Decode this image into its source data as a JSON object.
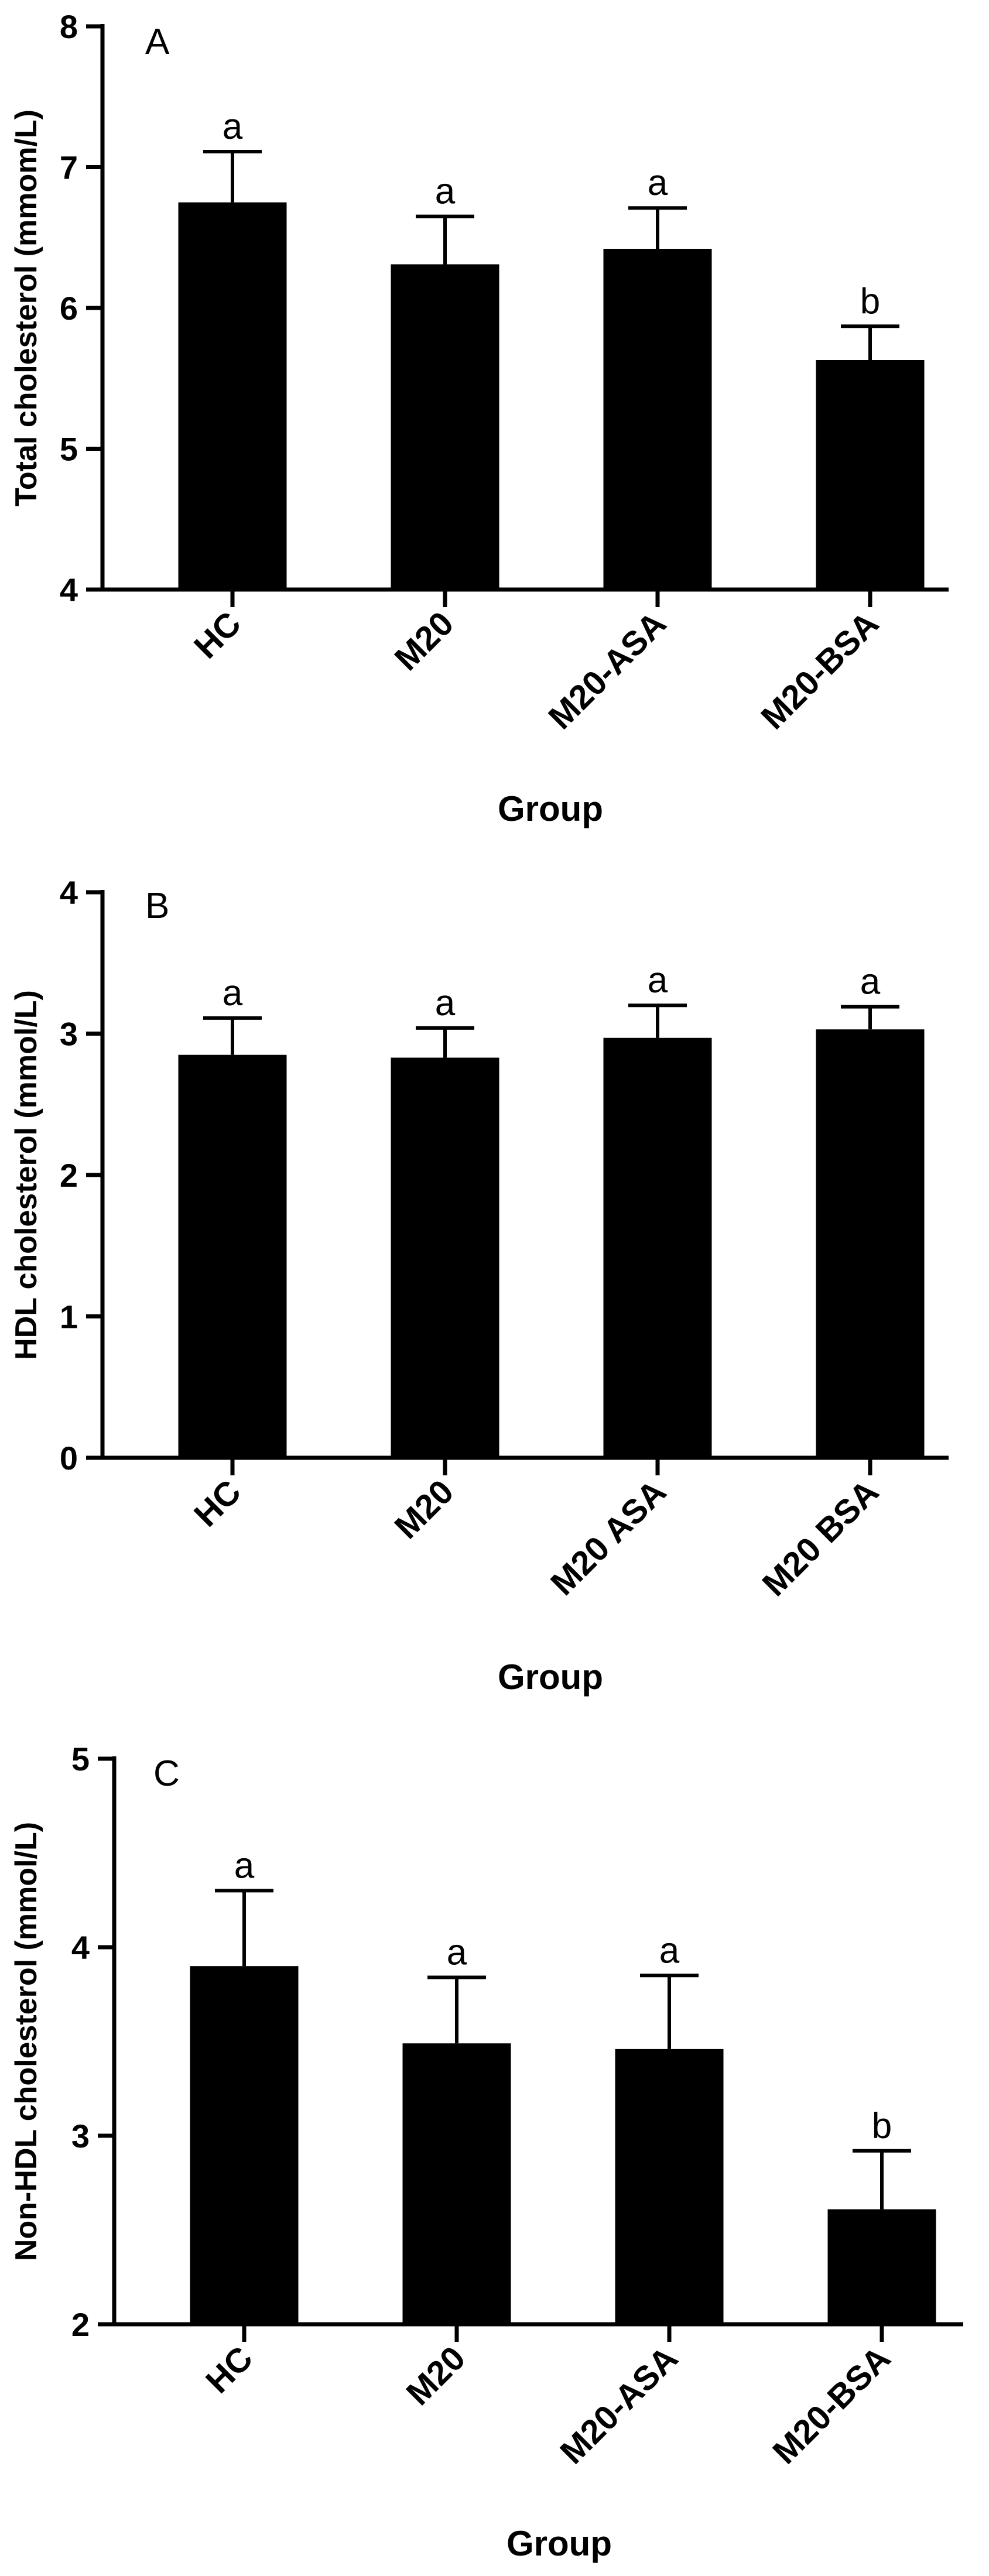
{
  "chart_data": [
    {
      "type": "bar",
      "panel_label": "A",
      "categories": [
        "HC",
        "M20",
        "M20-ASA",
        "M20-BSA"
      ],
      "values": [
        6.75,
        6.31,
        6.42,
        5.63
      ],
      "error_upper": [
        7.11,
        6.65,
        6.71,
        5.87
      ],
      "significance": [
        "a",
        "a",
        "a",
        "b"
      ],
      "ylim": [
        4,
        8
      ],
      "yticks": [
        4,
        5,
        6,
        7,
        8
      ],
      "xlabel": "Group",
      "ylabel": "Total cholesterol (mmom/L)",
      "bar_color": "#000000",
      "grid": false
    },
    {
      "type": "bar",
      "panel_label": "B",
      "categories": [
        "HC",
        "M20",
        "M20 ASA",
        "M20 BSA"
      ],
      "values": [
        2.85,
        2.83,
        2.97,
        3.03
      ],
      "error_upper": [
        3.11,
        3.04,
        3.2,
        3.19
      ],
      "significance": [
        "a",
        "a",
        "a",
        "a"
      ],
      "ylim": [
        0,
        4
      ],
      "yticks": [
        0,
        1,
        2,
        3,
        4
      ],
      "xlabel": "Group",
      "ylabel": "HDL cholesterol (mmol/L)",
      "bar_color": "#000000",
      "grid": false
    },
    {
      "type": "bar",
      "panel_label": "C",
      "categories": [
        "HC",
        "M20",
        "M20-ASA",
        "M20-BSA"
      ],
      "values": [
        3.9,
        3.49,
        3.46,
        2.61
      ],
      "error_upper": [
        4.3,
        3.84,
        3.85,
        2.92
      ],
      "significance": [
        "a",
        "a",
        "a",
        "b"
      ],
      "ylim": [
        2,
        5
      ],
      "yticks": [
        2,
        3,
        4,
        5
      ],
      "xlabel": "Group",
      "ylabel": "Non-HDL cholesterol (mmol/L)",
      "bar_color": "#000000",
      "grid": false
    }
  ]
}
